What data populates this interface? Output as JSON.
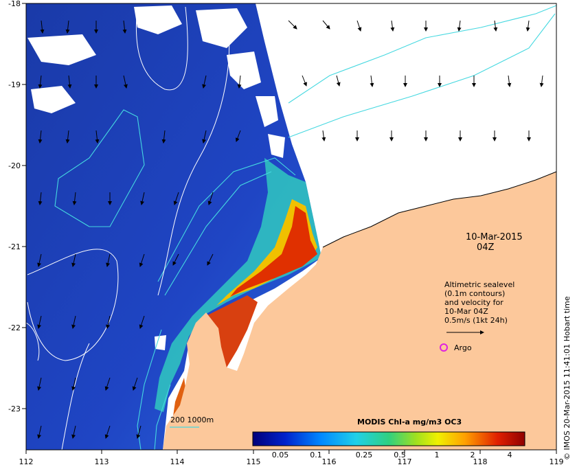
{
  "map": {
    "x_axis": {
      "ticks": [
        "112",
        "113",
        "114",
        "115",
        "116",
        "117",
        "118",
        "119"
      ]
    },
    "y_axis": {
      "ticks": [
        "-18",
        "-19",
        "-20",
        "-21",
        "-22",
        "-23"
      ]
    },
    "date_line1": "10-Mar-2015",
    "date_line2": "04Z",
    "altimetry_note": [
      "Altimetric sealevel",
      "(0.1m contours)",
      "and velocity for",
      "10-Mar 04Z",
      "0.5m/s (1kt 24h)"
    ],
    "argo_label": "Argo",
    "contour_key": "200  1000m",
    "colorbar": {
      "title": "MODIS Chl-a mg/m3 OC3",
      "tick_labels": [
        "0.05",
        "0.1",
        "0.25",
        "0.5",
        "1",
        "2",
        "4"
      ]
    },
    "copyright": "© IMOS 20-Mar-2015 11:41:01 Hobart time",
    "colors": {
      "ocean": "#1f3fb8",
      "land": "#fcc89b",
      "cloud": "#ffffff",
      "argo": "#e020e0",
      "isobath": "#44d8e0"
    }
  }
}
